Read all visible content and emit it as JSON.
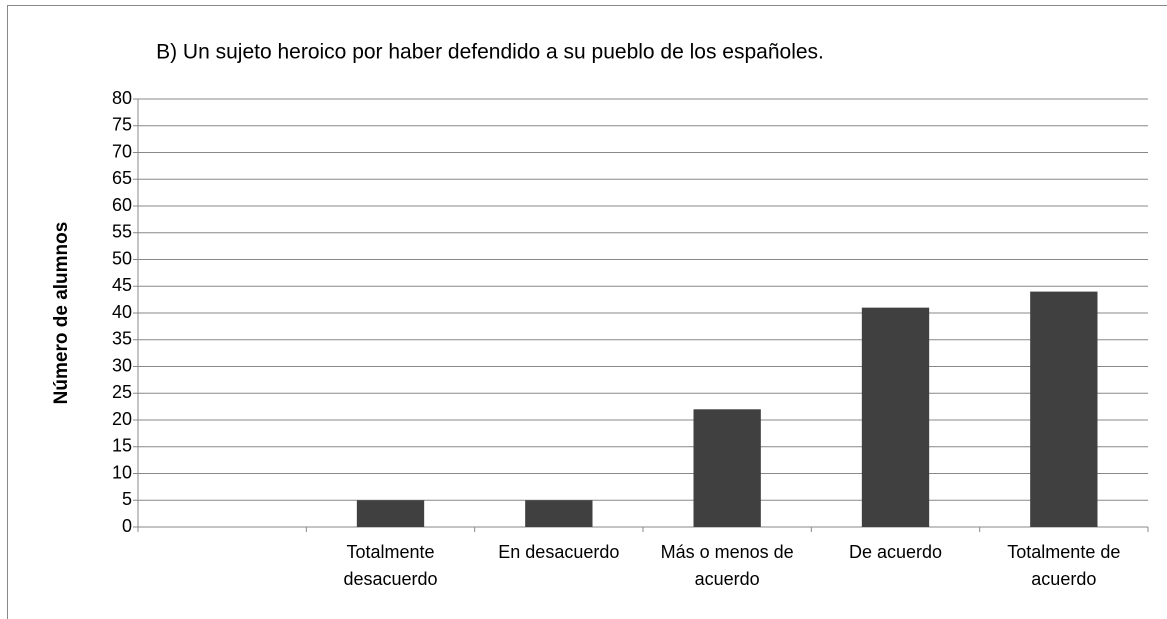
{
  "chart_data": {
    "type": "bar",
    "title": "B) Un sujeto heroico por haber defendido a su pueblo de los españoles.",
    "y_label": "Número de alumnos",
    "categories": [
      null,
      "Totalmente desacuerdo",
      "En desacuerdo",
      "Más o menos de acuerdo",
      "De acuerdo",
      "Totalmente de acuerdo"
    ],
    "values": [
      null,
      5,
      5,
      22,
      41,
      44
    ],
    "color": "#404040",
    "ylim": [
      0,
      80
    ],
    "yticks": [
      0,
      5,
      10,
      15,
      20,
      25,
      30,
      35,
      40,
      45,
      50,
      55,
      60,
      65,
      70,
      75,
      80
    ],
    "grid": true
  }
}
